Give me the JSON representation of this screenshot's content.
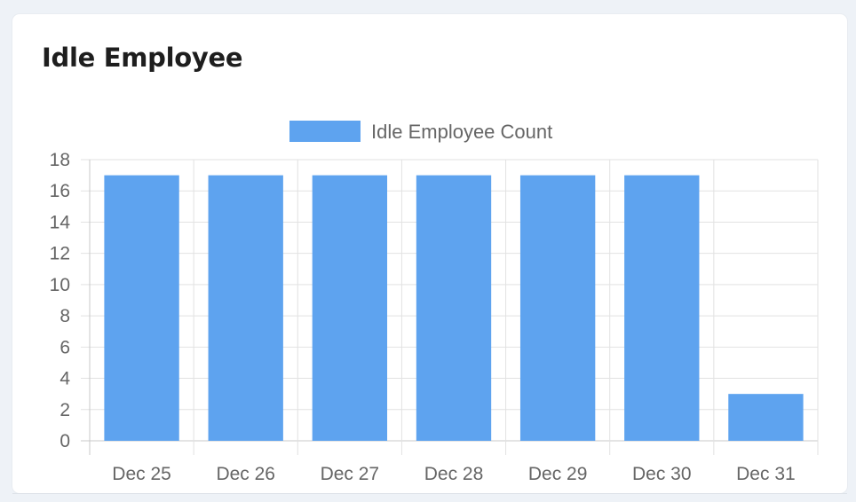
{
  "card": {
    "title": "Idle Employee"
  },
  "colors": {
    "bar": "#5ea3ef",
    "grid": "#e2e2e2",
    "axis_text": "#666666"
  },
  "chart_data": {
    "type": "bar",
    "categories": [
      "Dec 25",
      "Dec 26",
      "Dec 27",
      "Dec 28",
      "Dec 29",
      "Dec 30",
      "Dec 31"
    ],
    "series": [
      {
        "name": "Idle Employee Count",
        "values": [
          17,
          17,
          17,
          17,
          17,
          17,
          3
        ]
      }
    ],
    "ylim": [
      0,
      18
    ],
    "yticks": [
      0,
      2,
      4,
      6,
      8,
      10,
      12,
      14,
      16,
      18
    ],
    "grid": true,
    "legend": "top-center"
  }
}
